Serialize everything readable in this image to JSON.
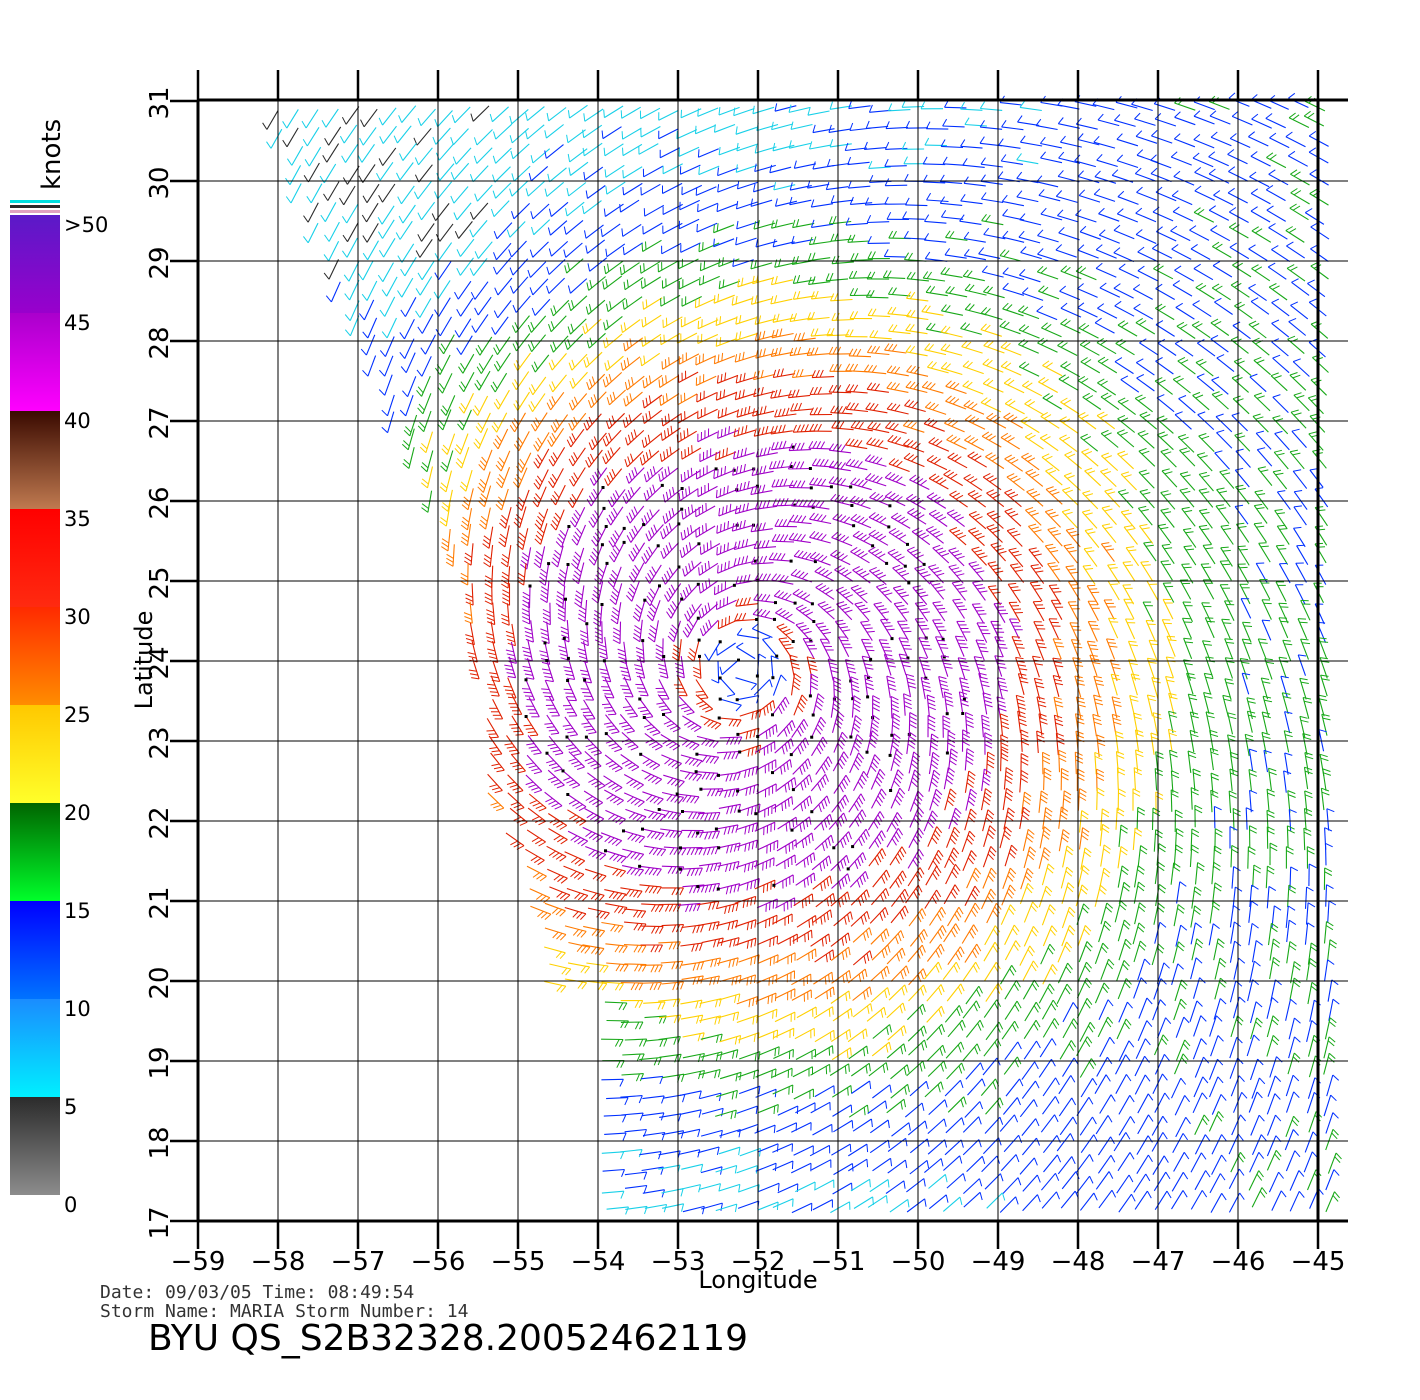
{
  "map": {
    "lon_ticks": [
      "-59",
      "-58",
      "-57",
      "-56",
      "-55",
      "-54",
      "-53",
      "-52",
      "-51",
      "-50",
      "-49",
      "-48",
      "-47",
      "-46",
      "-45"
    ],
    "lat_ticks": [
      "17",
      "18",
      "19",
      "20",
      "21",
      "22",
      "23",
      "24",
      "25",
      "26",
      "27",
      "28",
      "29",
      "30",
      "31"
    ],
    "lon_range": [
      -59,
      -44.6
    ],
    "lat_range": [
      17,
      31
    ],
    "xlabel": "Longitude",
    "ylabel": "Latitude",
    "storm_center": {
      "lon": -52.2,
      "lat": 23.9
    }
  },
  "colorbar": {
    "unit": "knots",
    "labels": [
      ">50",
      "45",
      "40",
      "35",
      "30",
      "25",
      "20",
      "15",
      "10",
      "5",
      "0"
    ],
    "bands": [
      {
        "from": 0,
        "to": 5,
        "top": "#2b2b2b",
        "bottom": "#8c8c8c"
      },
      {
        "from": 5,
        "to": 10,
        "top": "#1a8cff",
        "bottom": "#00f0ff"
      },
      {
        "from": 10,
        "to": 15,
        "top": "#0000ff",
        "bottom": "#0073ff"
      },
      {
        "from": 15,
        "to": 20,
        "top": "#006400",
        "bottom": "#00ff2a"
      },
      {
        "from": 20,
        "to": 25,
        "top": "#ffc800",
        "bottom": "#ffff2a"
      },
      {
        "from": 25,
        "to": 30,
        "top": "#ff2a00",
        "bottom": "#ff8c00"
      },
      {
        "from": 30,
        "to": 35,
        "top": "#ff0000",
        "bottom": "#ff2a10"
      },
      {
        "from": 35,
        "to": 40,
        "top": "#3a0a00",
        "bottom": "#c07a50"
      },
      {
        "from": 40,
        "to": 45,
        "top": "#aa00cc",
        "bottom": "#ff00ff"
      },
      {
        "from": 45,
        "to": 50,
        "top": "#5a1ac8",
        "bottom": "#9900cc"
      }
    ]
  },
  "info": {
    "date_line": "Date: 09/03/05   Time: 08:49:54",
    "storm_line": "Storm Name: MARIA   Storm Number: 14",
    "file_id": "BYU QS_S2B32328.20052462119"
  },
  "colors": {
    "calm": "#2b2b2b",
    "cyan": "#18d0e8",
    "blue": "#0030ff",
    "green": "#18a818",
    "yellow": "#ffd000",
    "orange": "#ff7a00",
    "red": "#e02000",
    "magenta": "#a000c8"
  }
}
